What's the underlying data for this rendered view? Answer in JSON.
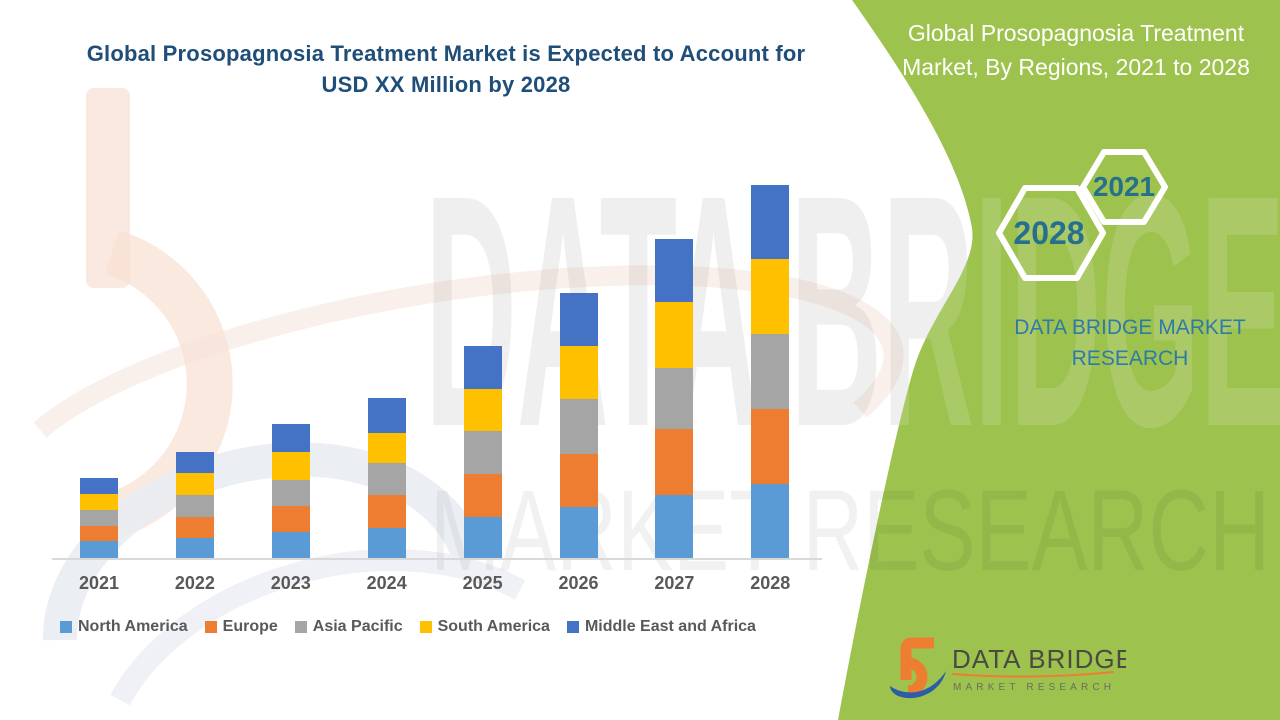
{
  "chart": {
    "title_lines": [
      "Global Prosopagnosia Treatment Market is Expected to Account for",
      "USD XX Million by 2028"
    ]
  },
  "chart_data": {
    "type": "bar",
    "stacked": true,
    "title": "Global Prosopagnosia Treatment Market is Expected to Account for USD XX Million by 2028",
    "xlabel": "",
    "ylabel": "",
    "units": "USD Million (actual values undisclosed, shown as 'XX'; series values below are relative heights read from the chart, px)",
    "grid": false,
    "y_axis_shown": false,
    "legend_position": "bottom",
    "categories": [
      "2021",
      "2022",
      "2023",
      "2024",
      "2025",
      "2026",
      "2027",
      "2028"
    ],
    "series": [
      {
        "name": "North America",
        "color": "#5B9BD5",
        "values": [
          18,
          21,
          27,
          31,
          42,
          52,
          64,
          75
        ]
      },
      {
        "name": "Europe",
        "color": "#ED7D31",
        "values": [
          15,
          21,
          26,
          33,
          43,
          53,
          66,
          75
        ]
      },
      {
        "name": "Asia Pacific",
        "color": "#A5A5A5",
        "values": [
          16,
          22,
          26,
          32,
          43,
          55,
          61,
          75
        ]
      },
      {
        "name": "South America",
        "color": "#FFC000",
        "values": [
          16,
          22,
          28,
          30,
          42,
          53,
          66,
          75
        ]
      },
      {
        "name": "Middle East and Africa",
        "color": "#4472C4",
        "values": [
          16,
          21,
          28,
          35,
          43,
          53,
          63,
          74
        ]
      }
    ],
    "stack_totals": [
      81,
      107,
      135,
      161,
      213,
      266,
      320,
      374
    ]
  },
  "right_panel": {
    "title_lines": [
      "Global Prosopagnosia Treatment",
      "Market, By Regions, 2021 to 2028"
    ],
    "hexagon_small_label": "2021",
    "hexagon_large_label": "2028",
    "brand_lines": [
      "DATA BRIDGE MARKET",
      "RESEARCH"
    ]
  },
  "logo": {
    "name_text": "DATA BRIDGE",
    "sub_text": "MARKET RESEARCH"
  },
  "watermark": {
    "line1": "DATA BRIDGE",
    "line2": "MARKET RESEARCH"
  },
  "colors": {
    "green_panel": "#9DC24E",
    "title_blue": "#1F4E79",
    "axis_gray": "#D9D9D9",
    "label_gray": "#595959",
    "hexagon_year_text": "#26708E",
    "brand_blue": "#2E7AA9",
    "logo_orange": "#ED7D31",
    "logo_swoosh_blue": "#2D5CA8"
  }
}
